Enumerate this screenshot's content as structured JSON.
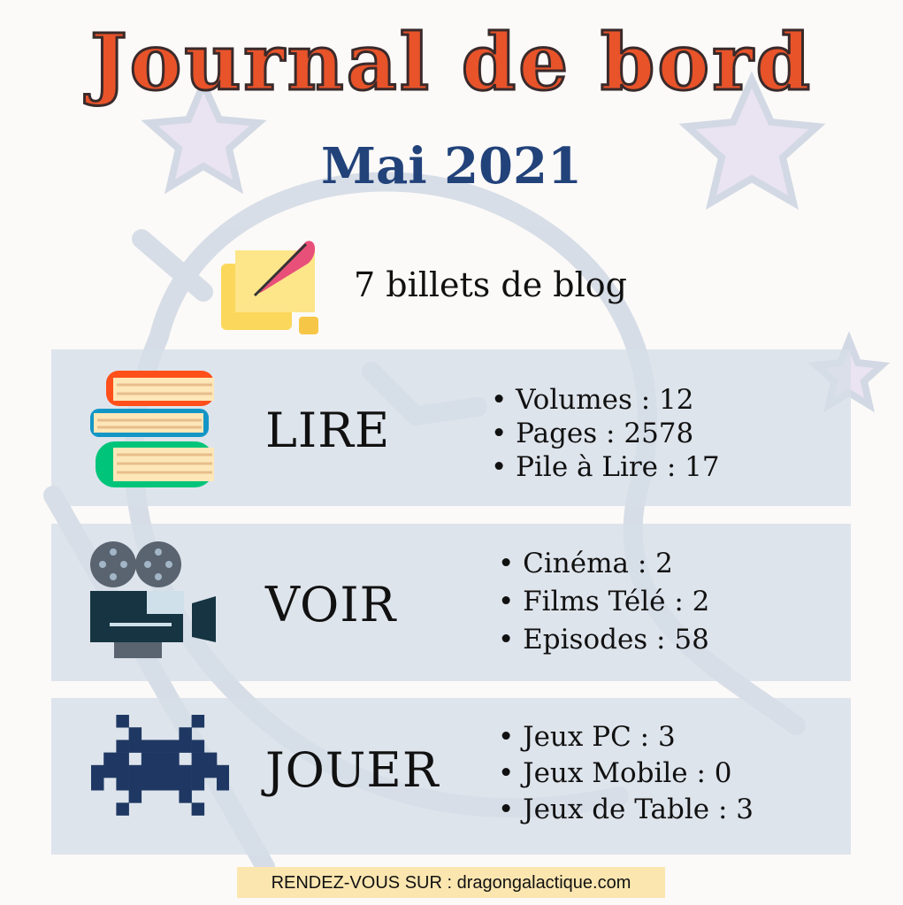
{
  "title": "Journal de bord",
  "month": "Mai 2021",
  "blog": {
    "text": "7 billets de blog",
    "icon": "scroll-quill-icon"
  },
  "sections": [
    {
      "label": "LIRE",
      "icon": "books-icon",
      "items": [
        "Volumes : 12",
        "Pages : 2578",
        "Pile à Lire : 17"
      ]
    },
    {
      "label": "VOIR",
      "icon": "film-camera-icon",
      "items": [
        "Cinéma : 2",
        "Films Télé : 2",
        "Episodes : 58"
      ]
    },
    {
      "label": "JOUER",
      "icon": "space-invader-icon",
      "items": [
        "Jeux PC : 3",
        "Jeux Mobile : 0",
        "Jeux de Table : 3"
      ]
    }
  ],
  "footer": "RENDEZ-VOUS SUR : dragongalactique.com",
  "colors": {
    "title": "#e8532a",
    "month": "#22427a",
    "panel": "#dde3ea",
    "footer": "#fbe6b0",
    "invader": "#1f3863"
  }
}
